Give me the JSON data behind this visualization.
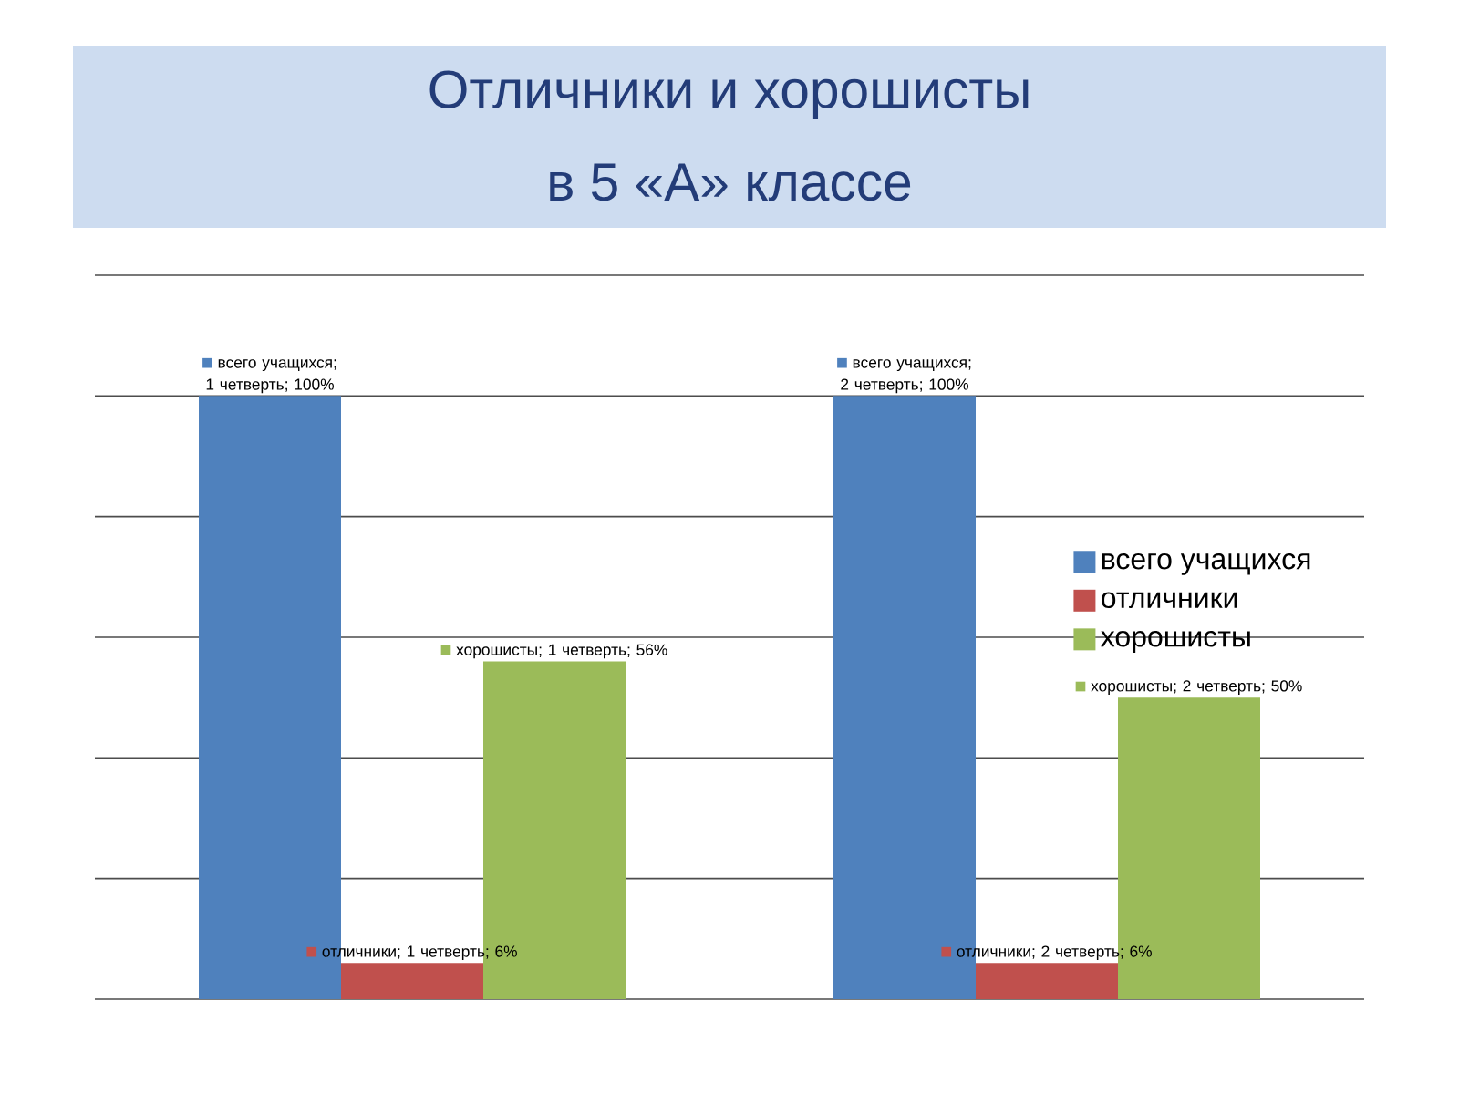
{
  "chart_data": {
    "type": "bar",
    "title": "Отличники и хорошисты",
    "subtitle": "в 5 «А» классе",
    "categories": [
      null,
      null
    ],
    "ylim": [
      0,
      120
    ],
    "yticks": [
      {
        "value": 0,
        "label": null
      },
      {
        "value": 20,
        "label": null
      },
      {
        "value": 40,
        "label": null
      },
      {
        "value": 60,
        "label": null
      },
      {
        "value": 80,
        "label": null
      },
      {
        "value": 100,
        "label": null
      },
      {
        "value": 120,
        "label": null
      }
    ],
    "grid": "y",
    "legend": "right",
    "series": [
      {
        "name": "всего учащихся",
        "color": "#4f81bd",
        "values": [
          100,
          100
        ],
        "value_labels": [
          "всего учащихся; 1 четверть; 100%",
          "всего учащихся; 2 четверть; 100%"
        ]
      },
      {
        "name": "отличники",
        "color": "#c0504d",
        "values": [
          6,
          6
        ],
        "value_labels": [
          "отличники; 1 четверть; 6%",
          "отличники; 2 четверть; 6%"
        ]
      },
      {
        "name": "хорошисты",
        "color": "#9bbb59",
        "values": [
          56,
          50
        ],
        "value_labels": [
          "хорошисты; 1 четверть; 56%",
          "хорошисты; 2 четверть; 50%"
        ]
      }
    ]
  }
}
